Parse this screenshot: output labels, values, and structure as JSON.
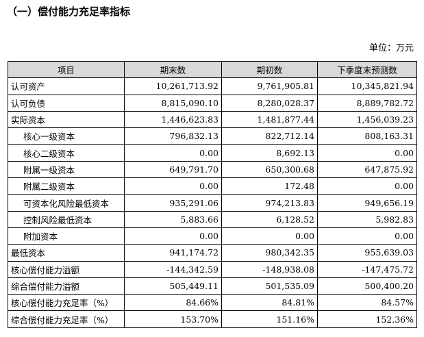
{
  "title": "（一）偿付能力充足率指标",
  "unit": "单位：万元",
  "headers": [
    "项目",
    "期末数",
    "期初数",
    "下季度末预测数"
  ],
  "rows": [
    {
      "label": "认可资产",
      "indent": false,
      "end": "10,261,713.92",
      "start": "9,761,905.81",
      "forecast": "10,345,821.94"
    },
    {
      "label": "认可负债",
      "indent": false,
      "end": "8,815,090.10",
      "start": "8,280,028.37",
      "forecast": "8,889,782.72"
    },
    {
      "label": "实际资本",
      "indent": false,
      "end": "1,446,623.83",
      "start": "1,481,877.44",
      "forecast": "1,456,039.23"
    },
    {
      "label": "核心一级资本",
      "indent": true,
      "end": "796,832.13",
      "start": "822,712.14",
      "forecast": "808,163.31"
    },
    {
      "label": "核心二级资本",
      "indent": true,
      "end": "0.00",
      "start": "8,692.13",
      "forecast": "0.00"
    },
    {
      "label": "附属一级资本",
      "indent": true,
      "end": "649,791.70",
      "start": "650,300.68",
      "forecast": "647,875.92"
    },
    {
      "label": "附属二级资本",
      "indent": true,
      "end": "0.00",
      "start": "172.48",
      "forecast": "0.00"
    },
    {
      "label": "可资本化风险最低资本",
      "indent": true,
      "end": "935,291.06",
      "start": "974,213.83",
      "forecast": "949,656.19"
    },
    {
      "label": "控制风险最低资本",
      "indent": true,
      "end": "5,883.66",
      "start": "6,128.52",
      "forecast": "5,982.83"
    },
    {
      "label": "附加资本",
      "indent": true,
      "end": "0.00",
      "start": "0.00",
      "forecast": "0.00"
    },
    {
      "label": "最低资本",
      "indent": false,
      "end": "941,174.72",
      "start": "980,342.35",
      "forecast": "955,639.03"
    },
    {
      "label": "核心偿付能力溢额",
      "indent": false,
      "end": "-144,342.59",
      "start": "-148,938.08",
      "forecast": "-147,475.72"
    },
    {
      "label": "综合偿付能力溢额",
      "indent": false,
      "end": "505,449.11",
      "start": "501,535.09",
      "forecast": "500,400.20"
    },
    {
      "label": "核心偿付能力充足率（%）",
      "indent": false,
      "end": "84.66%",
      "start": "84.81%",
      "forecast": "84.57%"
    },
    {
      "label": "综合偿付能力充足率（%）",
      "indent": false,
      "end": "153.70%",
      "start": "151.16%",
      "forecast": "152.36%"
    }
  ]
}
